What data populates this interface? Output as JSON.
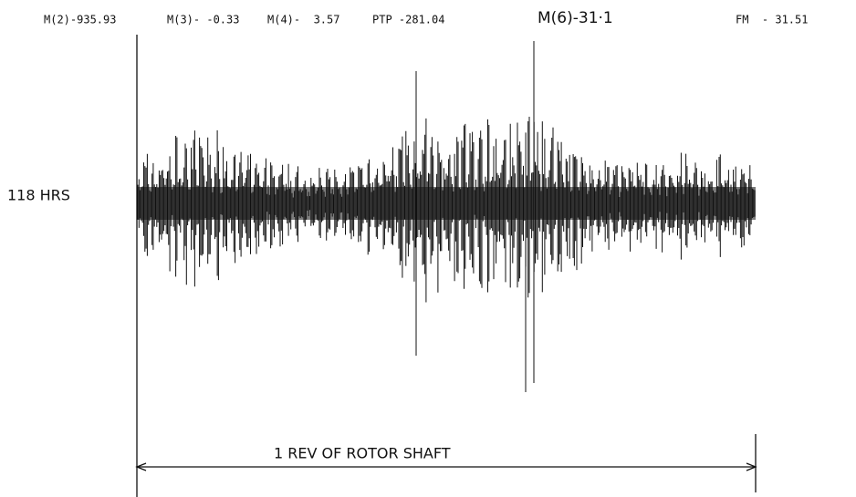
{
  "header": {
    "m2": "M(2)-935.93",
    "m3": "M(3)- -0.33",
    "m4": "M(4)-  3.57",
    "ptp": "PTP -281.04",
    "m6": "M(6)-31·1",
    "fm": "FM  - 31.51"
  },
  "label": "118 HRS",
  "span_label": "1 REV OF ROTOR SHAFT"
}
